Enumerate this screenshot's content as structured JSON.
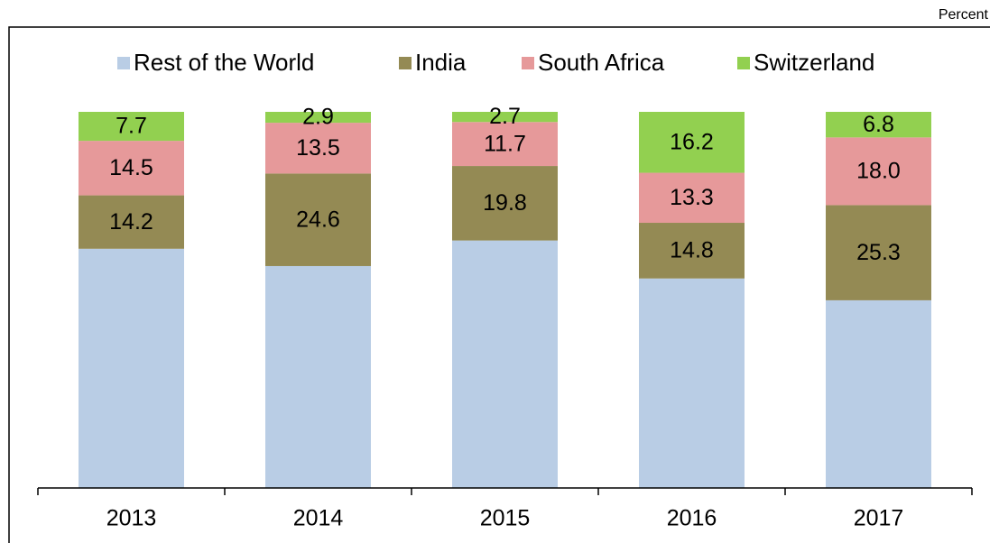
{
  "chart_data": {
    "type": "stacked_bar",
    "unit_label": "Percent",
    "categories": [
      "2013",
      "2014",
      "2015",
      "2016",
      "2017"
    ],
    "series": [
      {
        "name": "Rest of the World",
        "color": "#b9cde5",
        "values": [
          63.6,
          59.0,
          65.8,
          55.7,
          49.9
        ]
      },
      {
        "name": "India",
        "color": "#948a54",
        "values": [
          14.2,
          24.6,
          19.8,
          14.8,
          25.3
        ],
        "value_labels": [
          "14.2",
          "24.6",
          "19.8",
          "14.8",
          "25.3"
        ]
      },
      {
        "name": "South Africa",
        "color": "#e6999a",
        "values": [
          14.5,
          13.5,
          11.7,
          13.3,
          18.0
        ],
        "value_labels": [
          "14.5",
          "13.5",
          "11.7",
          "13.3",
          "18.0"
        ]
      },
      {
        "name": "Switzerland",
        "color": "#92d050",
        "values": [
          7.7,
          2.9,
          2.7,
          16.2,
          6.8
        ],
        "value_labels": [
          "7.7",
          "2.9",
          "2.7",
          "16.2",
          "6.8"
        ]
      }
    ],
    "ylim": [
      0,
      100
    ]
  }
}
